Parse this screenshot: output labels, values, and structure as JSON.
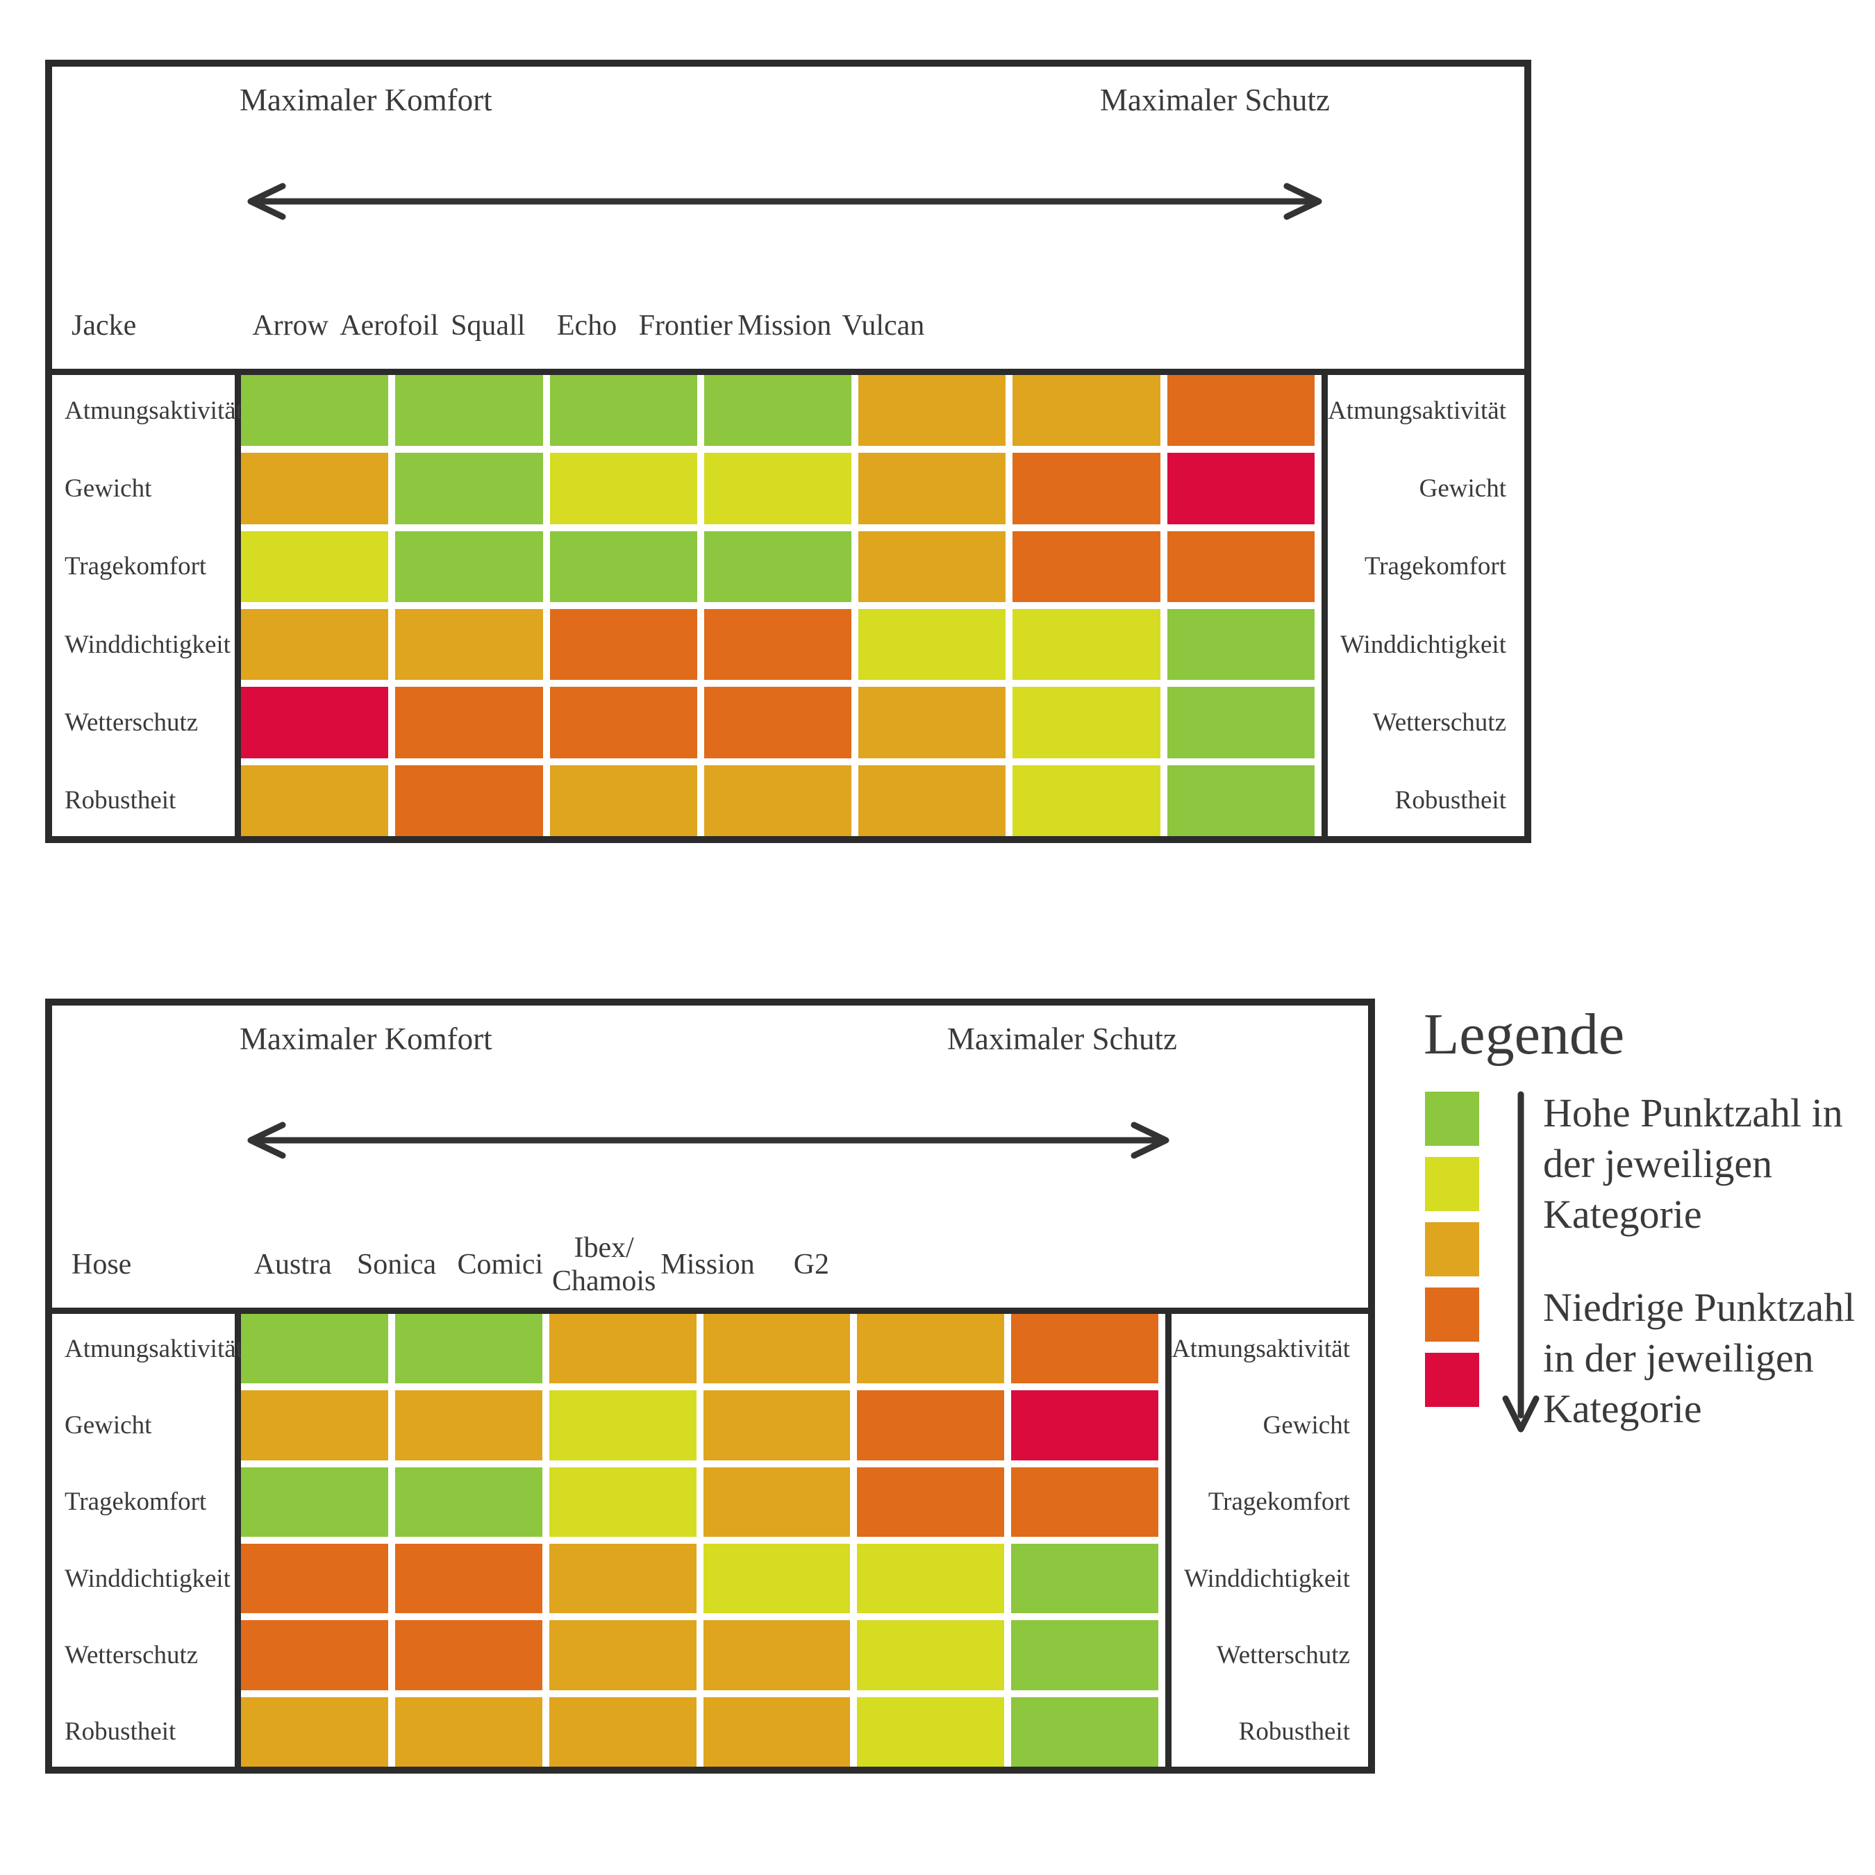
{
  "palette": {
    "green": "#8DC63F",
    "yellow": "#D5DC22",
    "amber": "#DFA51E",
    "orange": "#DF6B1B",
    "red": "#DB0B3E",
    "border": "#2B2B2B",
    "text": "#3A3A3A"
  },
  "tables": [
    {
      "id": "jacke",
      "product_label": "Jacke",
      "axis_left": "Maximaler Komfort",
      "axis_right": "Maximaler Schutz",
      "columns": [
        "Arrow",
        "Aerofoil",
        "Squall",
        "Echo",
        "Frontier",
        "Mission",
        "Vulcan"
      ],
      "rows": [
        "Atmungsaktivität",
        "Gewicht",
        "Tragekomfort",
        "Winddichtigkeit",
        "Wetterschutz",
        "Robustheit"
      ],
      "cells": [
        [
          "green",
          "green",
          "green",
          "green",
          "amber",
          "amber",
          "orange"
        ],
        [
          "amber",
          "green",
          "yellow",
          "yellow",
          "amber",
          "orange",
          "red"
        ],
        [
          "yellow",
          "green",
          "green",
          "green",
          "amber",
          "orange",
          "orange"
        ],
        [
          "amber",
          "amber",
          "orange",
          "orange",
          "yellow",
          "yellow",
          "green"
        ],
        [
          "red",
          "orange",
          "orange",
          "orange",
          "amber",
          "yellow",
          "green"
        ],
        [
          "amber",
          "orange",
          "amber",
          "amber",
          "amber",
          "yellow",
          "green"
        ]
      ]
    },
    {
      "id": "hose",
      "product_label": "Hose",
      "axis_left": "Maximaler Komfort",
      "axis_right": "Maximaler Schutz",
      "columns": [
        "Austra",
        "Sonica",
        "Comici",
        "Ibex/\nChamois",
        "Mission",
        "G2"
      ],
      "rows": [
        "Atmungsaktivität",
        "Gewicht",
        "Tragekomfort",
        "Winddichtigkeit",
        "Wetterschutz",
        "Robustheit"
      ],
      "cells": [
        [
          "green",
          "green",
          "amber",
          "amber",
          "amber",
          "orange"
        ],
        [
          "amber",
          "amber",
          "yellow",
          "amber",
          "orange",
          "red"
        ],
        [
          "green",
          "green",
          "yellow",
          "amber",
          "orange",
          "orange"
        ],
        [
          "orange",
          "orange",
          "amber",
          "yellow",
          "yellow",
          "green"
        ],
        [
          "orange",
          "orange",
          "amber",
          "amber",
          "yellow",
          "green"
        ],
        [
          "amber",
          "amber",
          "amber",
          "amber",
          "yellow",
          "green"
        ]
      ]
    }
  ],
  "legend": {
    "title": "Legende",
    "swatches": [
      "green",
      "yellow",
      "amber",
      "orange",
      "red"
    ],
    "high_label": "Hohe Punktzahl in\nder jeweiligen\nKategorie",
    "low_label": "Niedrige Punktzahl\nin der jeweiligen\nKategorie"
  },
  "chart_data": [
    {
      "type": "heatmap",
      "title": "Jacke",
      "x_categories": [
        "Arrow",
        "Aerofoil",
        "Squall",
        "Echo",
        "Frontier",
        "Mission",
        "Vulcan"
      ],
      "y_categories": [
        "Atmungsaktivität",
        "Gewicht",
        "Tragekomfort",
        "Winddichtigkeit",
        "Wetterschutz",
        "Robustheit"
      ],
      "axis_note": "Maximaler Komfort (links) ↔ Maximaler Schutz (rechts)",
      "value_scale": {
        "5": "green / Hohe Punktzahl",
        "4": "yellow",
        "3": "amber",
        "2": "orange",
        "1": "red / Niedrige Punktzahl"
      },
      "values": [
        [
          5,
          5,
          5,
          5,
          3,
          3,
          2
        ],
        [
          3,
          5,
          4,
          4,
          3,
          2,
          1
        ],
        [
          4,
          5,
          5,
          5,
          3,
          2,
          2
        ],
        [
          3,
          3,
          2,
          2,
          4,
          4,
          5
        ],
        [
          1,
          2,
          2,
          2,
          3,
          4,
          5
        ],
        [
          3,
          2,
          3,
          3,
          3,
          4,
          5
        ]
      ]
    },
    {
      "type": "heatmap",
      "title": "Hose",
      "x_categories": [
        "Austra",
        "Sonica",
        "Comici",
        "Ibex/Chamois",
        "Mission",
        "G2"
      ],
      "y_categories": [
        "Atmungsaktivität",
        "Gewicht",
        "Tragekomfort",
        "Winddichtigkeit",
        "Wetterschutz",
        "Robustheit"
      ],
      "axis_note": "Maximaler Komfort (links) ↔ Maximaler Schutz (rechts)",
      "value_scale": {
        "5": "green / Hohe Punktzahl",
        "4": "yellow",
        "3": "amber",
        "2": "orange",
        "1": "red / Niedrige Punktzahl"
      },
      "values": [
        [
          5,
          5,
          3,
          3,
          3,
          2
        ],
        [
          3,
          3,
          4,
          3,
          2,
          1
        ],
        [
          5,
          5,
          4,
          3,
          2,
          2
        ],
        [
          2,
          2,
          3,
          4,
          4,
          5
        ],
        [
          2,
          2,
          3,
          3,
          4,
          5
        ],
        [
          3,
          3,
          3,
          3,
          4,
          5
        ]
      ]
    }
  ]
}
